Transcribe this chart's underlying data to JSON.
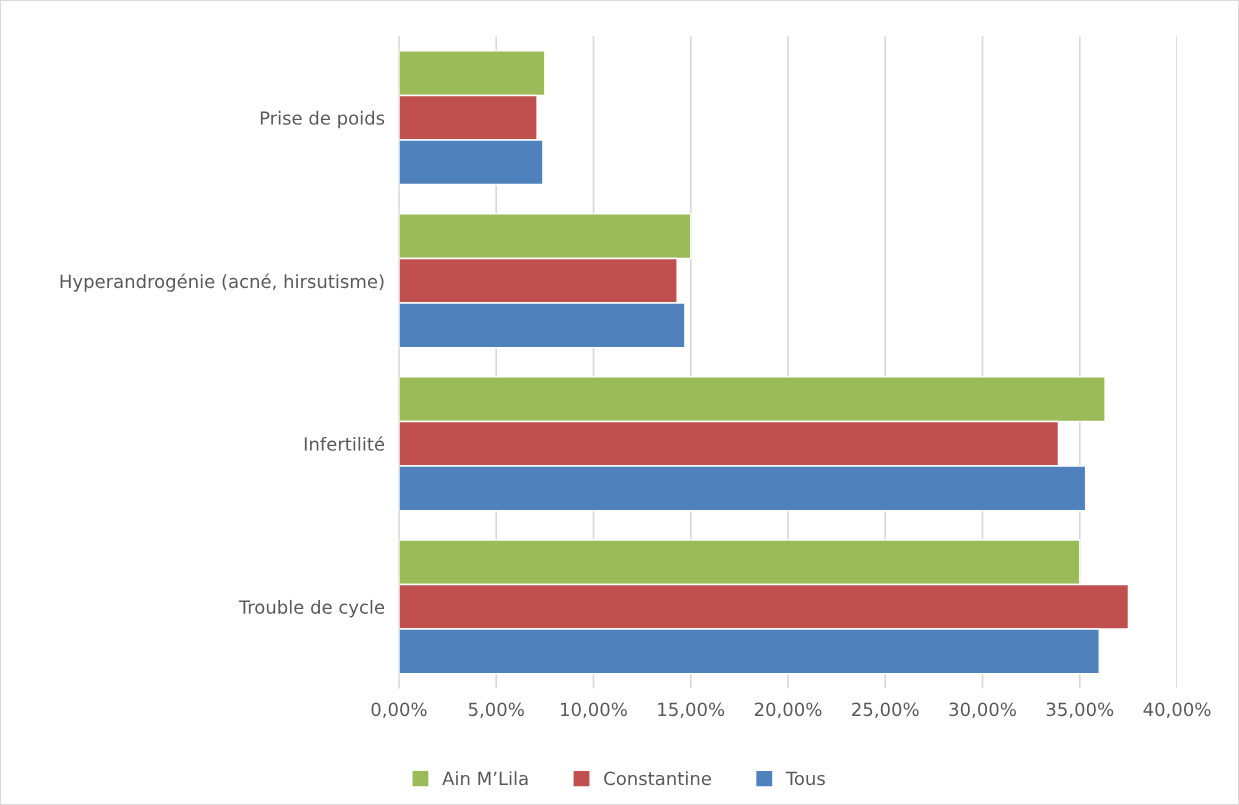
{
  "chart_data": {
    "type": "bar",
    "orientation": "horizontal",
    "categories": [
      "Prise de poids",
      "Hyperandrogénie (acné, hirsutisme)",
      "Infertilité",
      "Trouble de cycle"
    ],
    "series": [
      {
        "name": "Ain M’Lila",
        "color": "#9bbb59",
        "values": [
          7.5,
          15.0,
          36.3,
          35.0
        ]
      },
      {
        "name": "Constantine",
        "color": "#c0504d",
        "values": [
          7.1,
          14.3,
          33.9,
          37.5
        ]
      },
      {
        "name": "Tous",
        "color": "#4f81bd",
        "values": [
          7.4,
          14.7,
          35.3,
          36.0
        ]
      }
    ],
    "xlim": [
      0,
      40
    ],
    "xticks": [
      {
        "value": 0,
        "label": "0,00%"
      },
      {
        "value": 5,
        "label": "5,00%"
      },
      {
        "value": 10,
        "label": "10,00%"
      },
      {
        "value": 15,
        "label": "15,00%"
      },
      {
        "value": 20,
        "label": "20,00%"
      },
      {
        "value": 25,
        "label": "25,00%"
      },
      {
        "value": 30,
        "label": "30,00%"
      },
      {
        "value": 35,
        "label": "35,00%"
      },
      {
        "value": 40,
        "label": "40,00%"
      }
    ],
    "grid": "x",
    "legend": "bottom"
  }
}
